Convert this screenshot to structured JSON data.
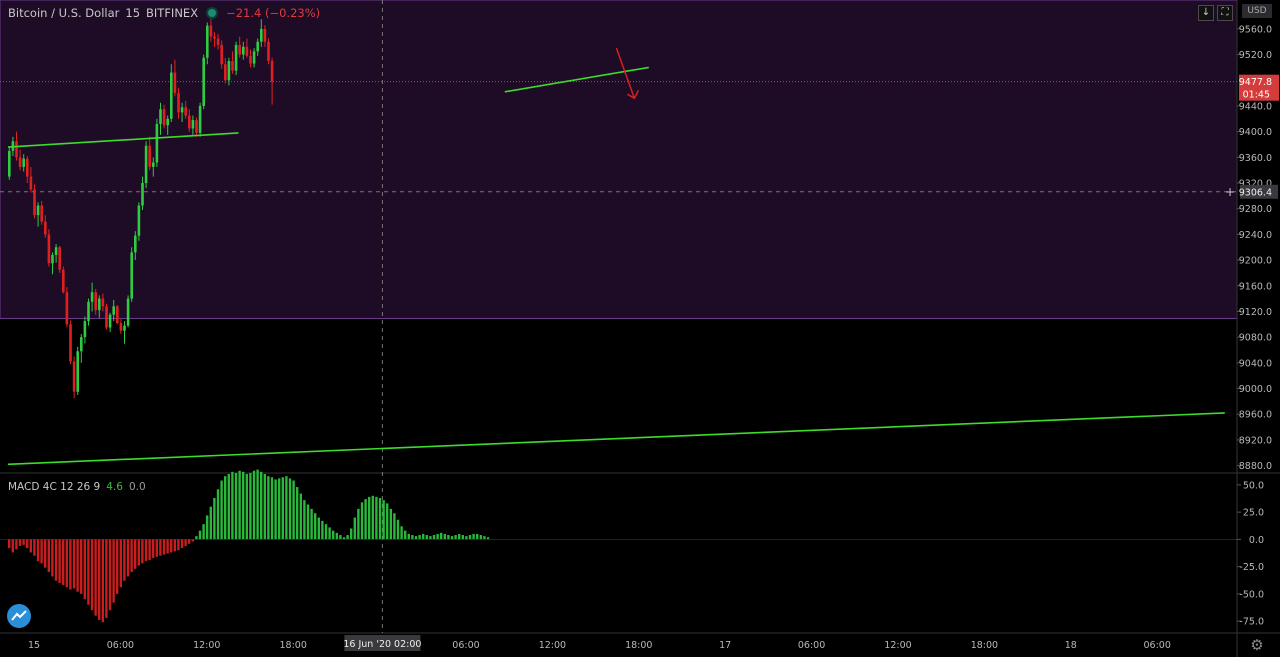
{
  "header": {
    "symbol": "Bitcoin / U.S. Dollar",
    "interval": "15",
    "exchange": "BITFINEX",
    "change": "−21.4 (−0.23%)"
  },
  "currency_badge": "USD",
  "toolbar_icons": [
    "arrow-down-icon",
    "fullscreen-icon"
  ],
  "macd": {
    "label": "MACD 4C 12 26 9",
    "value1": "4.6",
    "value2": "0.0"
  },
  "colors": {
    "bg": "#000000",
    "zone": "#1e0c26",
    "zone_border": "#6a3b8a",
    "up": "#2ecc40",
    "down": "#e02020",
    "trendline": "#3ddc2b",
    "price_line": "#d43c3c",
    "axis_text": "#b8b8b8",
    "grid_sep": "#333333"
  },
  "chart_data": {
    "type": "candlestick",
    "price_axis": {
      "ticks": [
        "9560.0",
        "9520.0",
        "9440.0",
        "9400.0",
        "9360.0",
        "9320.0",
        "9280.0",
        "9240.0",
        "9200.0",
        "9160.0",
        "9120.0",
        "9080.0",
        "9040.0",
        "9000.0",
        "8960.0",
        "8920.0",
        "8880.0"
      ],
      "range": [
        8870,
        9605
      ]
    },
    "current_price": {
      "value": 9477.8,
      "label": "9477.8",
      "countdown": "01:45"
    },
    "crosshair_price": {
      "value": 9306.4,
      "label": "9306.4"
    },
    "zone": {
      "from": 9109,
      "to": 9605
    },
    "time_axis": {
      "ticks": [
        {
          "label": "15",
          "bar": 0
        },
        {
          "label": "06:00",
          "bar": 24
        },
        {
          "label": "12:00",
          "bar": 48
        },
        {
          "label": "18:00",
          "bar": 72
        },
        {
          "label": "06:00",
          "bar": 120
        },
        {
          "label": "12:00",
          "bar": 144
        },
        {
          "label": "18:00",
          "bar": 168
        },
        {
          "label": "17",
          "bar": 192
        },
        {
          "label": "06:00",
          "bar": 216
        },
        {
          "label": "12:00",
          "bar": 240
        },
        {
          "label": "18:00",
          "bar": 264
        },
        {
          "label": "18",
          "bar": 288
        },
        {
          "label": "06:00",
          "bar": 312
        }
      ],
      "crosshair_label": "16 Jun '20  02:00",
      "crosshair_bar": 104
    },
    "candles": [
      [
        9330,
        9375,
        9325,
        9370
      ],
      [
        9370,
        9392,
        9362,
        9385
      ],
      [
        9385,
        9400,
        9355,
        9360
      ],
      [
        9360,
        9372,
        9340,
        9345
      ],
      [
        9345,
        9365,
        9338,
        9358
      ],
      [
        9358,
        9362,
        9320,
        9330
      ],
      [
        9330,
        9345,
        9305,
        9310
      ],
      [
        9310,
        9318,
        9265,
        9270
      ],
      [
        9270,
        9290,
        9252,
        9285
      ],
      [
        9285,
        9292,
        9255,
        9260
      ],
      [
        9260,
        9270,
        9235,
        9240
      ],
      [
        9240,
        9248,
        9190,
        9195
      ],
      [
        9195,
        9212,
        9178,
        9208
      ],
      [
        9208,
        9225,
        9196,
        9220
      ],
      [
        9220,
        9222,
        9180,
        9185
      ],
      [
        9185,
        9190,
        9148,
        9150
      ],
      [
        9150,
        9158,
        9095,
        9100
      ],
      [
        9100,
        9106,
        9038,
        9042
      ],
      [
        9042,
        9050,
        8985,
        8995
      ],
      [
        8995,
        9065,
        8990,
        9058
      ],
      [
        9058,
        9085,
        9040,
        9080
      ],
      [
        9080,
        9112,
        9070,
        9105
      ],
      [
        9105,
        9140,
        9098,
        9135
      ],
      [
        9135,
        9165,
        9120,
        9150
      ],
      [
        9150,
        9155,
        9115,
        9122
      ],
      [
        9122,
        9145,
        9110,
        9140
      ],
      [
        9140,
        9148,
        9120,
        9128
      ],
      [
        9128,
        9132,
        9092,
        9095
      ],
      [
        9095,
        9118,
        9088,
        9115
      ],
      [
        9115,
        9138,
        9105,
        9128
      ],
      [
        9128,
        9130,
        9100,
        9102
      ],
      [
        9102,
        9108,
        9085,
        9090
      ],
      [
        9090,
        9105,
        9070,
        9098
      ],
      [
        9098,
        9145,
        9095,
        9140
      ],
      [
        9140,
        9220,
        9135,
        9212
      ],
      [
        9212,
        9245,
        9200,
        9238
      ],
      [
        9238,
        9290,
        9230,
        9285
      ],
      [
        9285,
        9330,
        9278,
        9320
      ],
      [
        9320,
        9385,
        9312,
        9378
      ],
      [
        9378,
        9392,
        9340,
        9345
      ],
      [
        9345,
        9360,
        9330,
        9352
      ],
      [
        9352,
        9420,
        9345,
        9412
      ],
      [
        9412,
        9445,
        9395,
        9435
      ],
      [
        9435,
        9442,
        9405,
        9410
      ],
      [
        9410,
        9425,
        9395,
        9420
      ],
      [
        9420,
        9505,
        9415,
        9492
      ],
      [
        9492,
        9512,
        9455,
        9460
      ],
      [
        9460,
        9468,
        9420,
        9430
      ],
      [
        9430,
        9445,
        9415,
        9438
      ],
      [
        9438,
        9448,
        9420,
        9425
      ],
      [
        9425,
        9435,
        9400,
        9405
      ],
      [
        9405,
        9425,
        9395,
        9418
      ],
      [
        9418,
        9422,
        9392,
        9398
      ],
      [
        9398,
        9445,
        9392,
        9440
      ],
      [
        9440,
        9520,
        9435,
        9515
      ],
      [
        9515,
        9570,
        9505,
        9565
      ],
      [
        9565,
        9580,
        9540,
        9548
      ],
      [
        9548,
        9555,
        9532,
        9545
      ],
      [
        9545,
        9552,
        9528,
        9535
      ],
      [
        9535,
        9542,
        9498,
        9505
      ],
      [
        9505,
        9515,
        9475,
        9480
      ],
      [
        9480,
        9515,
        9472,
        9510
      ],
      [
        9510,
        9525,
        9490,
        9495
      ],
      [
        9495,
        9540,
        9488,
        9535
      ],
      [
        9535,
        9548,
        9515,
        9520
      ],
      [
        9520,
        9540,
        9512,
        9532
      ],
      [
        9532,
        9545,
        9515,
        9518
      ],
      [
        9518,
        9528,
        9500,
        9506
      ],
      [
        9506,
        9530,
        9500,
        9525
      ],
      [
        9525,
        9545,
        9518,
        9540
      ],
      [
        9540,
        9575,
        9532,
        9560
      ],
      [
        9560,
        9566,
        9532,
        9540
      ],
      [
        9540,
        9545,
        9505,
        9510
      ],
      [
        9510,
        9515,
        9442,
        9478
      ]
    ],
    "candle_start_bar": 0,
    "macd_histogram": {
      "ticks": [
        "50.0",
        "25.0",
        "0.0",
        "-25.0",
        "-50.0",
        "-75.0"
      ],
      "range": [
        -85,
        60
      ],
      "values": [
        -8,
        -12,
        -9,
        -6,
        -5,
        -8,
        -12,
        -15,
        -20,
        -22,
        -26,
        -30,
        -34,
        -38,
        -40,
        -42,
        -44,
        -46,
        -45,
        -48,
        -50,
        -55,
        -60,
        -65,
        -70,
        -74,
        -76,
        -72,
        -65,
        -58,
        -50,
        -44,
        -38,
        -34,
        -30,
        -27,
        -24,
        -22,
        -20,
        -19,
        -17,
        -16,
        -15,
        -14,
        -13,
        -12,
        -11,
        -10,
        -8,
        -6,
        -4,
        -2,
        3,
        8,
        14,
        22,
        30,
        38,
        46,
        54,
        58,
        60,
        62,
        61,
        63,
        62,
        60,
        61,
        63,
        64,
        62,
        60,
        58,
        57,
        55,
        56,
        57,
        58,
        56,
        54,
        48,
        42,
        36,
        32,
        28,
        24,
        20,
        17,
        14,
        11,
        8,
        6,
        4,
        2,
        4,
        10,
        20,
        28,
        34,
        37,
        39,
        40,
        39,
        38,
        36,
        33,
        28,
        24,
        18,
        12,
        8,
        5,
        4,
        3,
        4,
        5,
        4,
        3,
        4,
        5,
        6,
        5,
        4,
        3,
        4,
        5,
        4,
        3,
        4,
        5,
        5,
        4,
        3,
        2
      ]
    },
    "trendlines": [
      {
        "from": {
          "bar": 0,
          "price": 9376
        },
        "to": {
          "bar": 64,
          "price": 9398
        }
      },
      {
        "from": {
          "bar": 138,
          "price": 9462
        },
        "to": {
          "bar": 178,
          "price": 9500
        }
      },
      {
        "from": {
          "bar": 0,
          "price": 8882
        },
        "to": {
          "bar": 338,
          "price": 8962
        }
      }
    ],
    "arrow": {
      "from": {
        "bar": 169,
        "price": 9530
      },
      "to": {
        "bar": 174,
        "price": 9452
      }
    }
  }
}
